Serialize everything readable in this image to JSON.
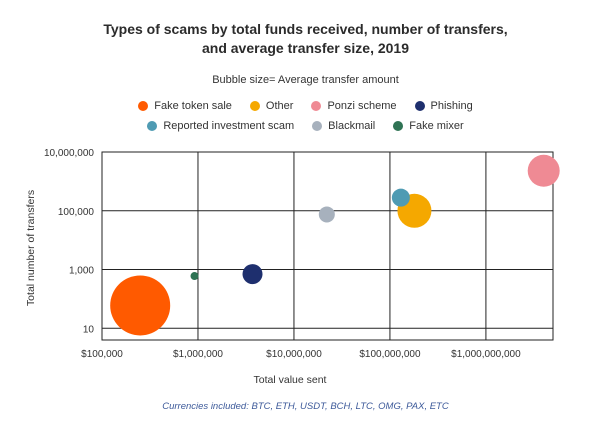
{
  "chart_data": {
    "type": "scatter",
    "title_line1": "Types of scams by total funds received, number of transfers,",
    "title_line2": "and average transfer size, 2019",
    "subtitle": "Bubble size= Average transfer amount",
    "xlabel": "Total value sent",
    "ylabel": "Total number of transfers",
    "x_scale": "log",
    "y_scale": "log",
    "xlim": [
      100000,
      5000000000
    ],
    "ylim": [
      4,
      10000000
    ],
    "x_ticks": [
      {
        "value": 100000,
        "label": "$100,000"
      },
      {
        "value": 1000000,
        "label": "$1,000,000"
      },
      {
        "value": 10000000,
        "label": "$10,000,000"
      },
      {
        "value": 100000000,
        "label": "$100,000,000"
      },
      {
        "value": 1000000000,
        "label": "$1,000,000,000"
      }
    ],
    "y_ticks": [
      {
        "value": 10,
        "label": "10"
      },
      {
        "value": 1000,
        "label": "1,000"
      },
      {
        "value": 100000,
        "label": "100,000"
      },
      {
        "value": 10000000,
        "label": "10,000,000"
      }
    ],
    "grid": true,
    "legend_position": "top",
    "series": [
      {
        "name": "Fake token sale",
        "color": "#ff5a00",
        "x": 250000,
        "y": 60,
        "size": 30
      },
      {
        "name": "Other",
        "color": "#f5a800",
        "x": 180000000,
        "y": 100000,
        "size": 17
      },
      {
        "name": "Ponzi scheme",
        "color": "#ef8a94",
        "x": 4000000000,
        "y": 2300000,
        "size": 16
      },
      {
        "name": "Phishing",
        "color": "#1e2f6e",
        "x": 3700000,
        "y": 700,
        "size": 10
      },
      {
        "name": "Reported investment scam",
        "color": "#4f9bb3",
        "x": 130000000,
        "y": 280000,
        "size": 9
      },
      {
        "name": "Blackmail",
        "color": "#a7b1bd",
        "x": 22000000,
        "y": 75000,
        "size": 8
      },
      {
        "name": "Fake mixer",
        "color": "#2f7354",
        "x": 920000,
        "y": 600,
        "size": 4
      }
    ],
    "caption": "Currencies included: BTC, ETH, USDT, BCH, LTC, OMG, PAX, ETC"
  }
}
